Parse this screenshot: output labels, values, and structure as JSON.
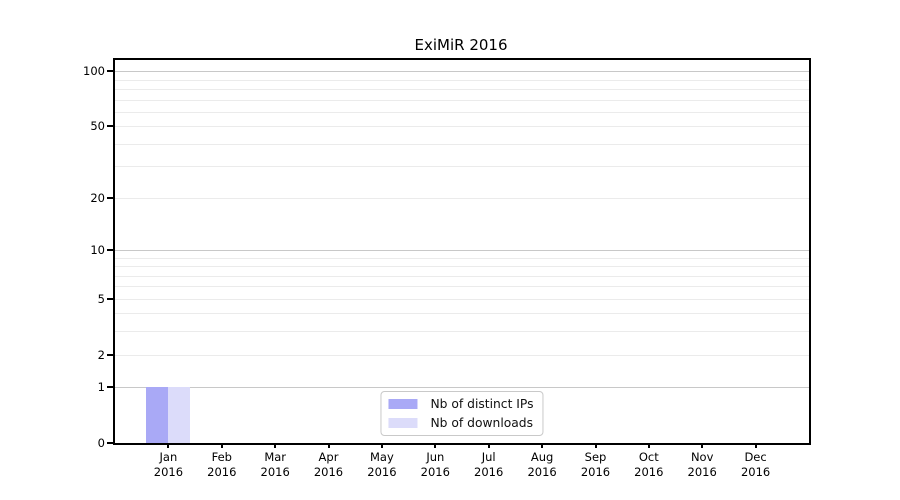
{
  "colors": {
    "background": "#ffffff",
    "axis": "#000000",
    "grid_major": "#c8c8c8",
    "grid_minor": "#ebebeb",
    "legend_border": "#c9c9c9",
    "bar_distinct_ips": "#a9a9f6",
    "bar_downloads": "#dcdcfa"
  },
  "chart_data": {
    "type": "bar",
    "title": "ExiMiR 2016",
    "categories": [
      "Jan",
      "Feb",
      "Mar",
      "Apr",
      "May",
      "Jun",
      "Jul",
      "Aug",
      "Sep",
      "Oct",
      "Nov",
      "Dec"
    ],
    "year_label": "2016",
    "series": [
      {
        "name": "Nb of distinct IPs",
        "color": "#a9a9f6",
        "values": [
          1,
          0,
          0,
          0,
          0,
          0,
          0,
          0,
          0,
          0,
          0,
          0
        ]
      },
      {
        "name": "Nb of downloads",
        "color": "#dcdcfa",
        "values": [
          1,
          0,
          0,
          0,
          0,
          0,
          0,
          0,
          0,
          0,
          0,
          0
        ]
      }
    ],
    "yscale": "log10(1+y)",
    "ylim": [
      0,
      115
    ],
    "yticks": [
      0,
      1,
      2,
      5,
      10,
      20,
      50,
      100
    ],
    "gridlines": {
      "dark": [
        1,
        10,
        100
      ],
      "light": [
        2,
        3,
        4,
        5,
        6,
        7,
        8,
        9,
        20,
        30,
        40,
        50,
        60,
        70,
        80,
        90
      ]
    },
    "legend_position": "lower center",
    "grid": true
  }
}
